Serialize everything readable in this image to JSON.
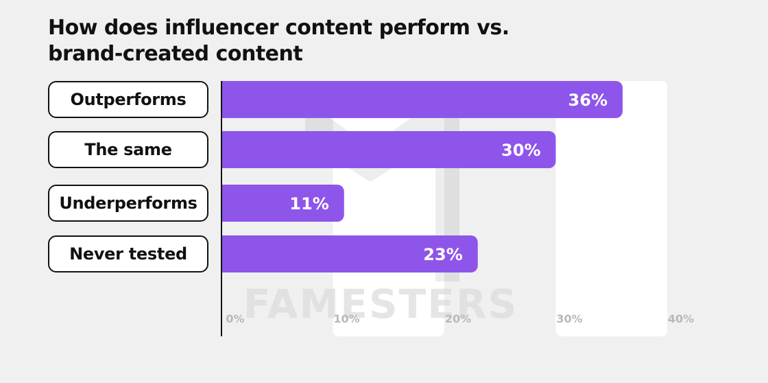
{
  "title_lines": [
    "How does influencer content perform vs.",
    "brand-created content"
  ],
  "watermark": "FAMESTERS",
  "colors": {
    "bar": "#8e55ea",
    "background": "#f0f0f0",
    "column_band": "#ffffff",
    "axis": "#111111",
    "tick_label": "#b8b8b8",
    "watermark": "#dcdcdc"
  },
  "chart_data": {
    "type": "bar",
    "orientation": "horizontal",
    "title": "How does influencer content perform vs. brand-created content",
    "categories": [
      "Outperforms",
      "The same",
      "Underperforms",
      "Never tested"
    ],
    "values": [
      36,
      30,
      11,
      23
    ],
    "data_labels": [
      "36%",
      "30%",
      "11%",
      "23%"
    ],
    "xlim": [
      0,
      40
    ],
    "x_ticks": [
      0,
      10,
      20,
      30,
      40
    ],
    "x_tick_labels": [
      "0%",
      "10%",
      "20%",
      "30%",
      "40%"
    ],
    "grid": false,
    "legend": "none"
  }
}
